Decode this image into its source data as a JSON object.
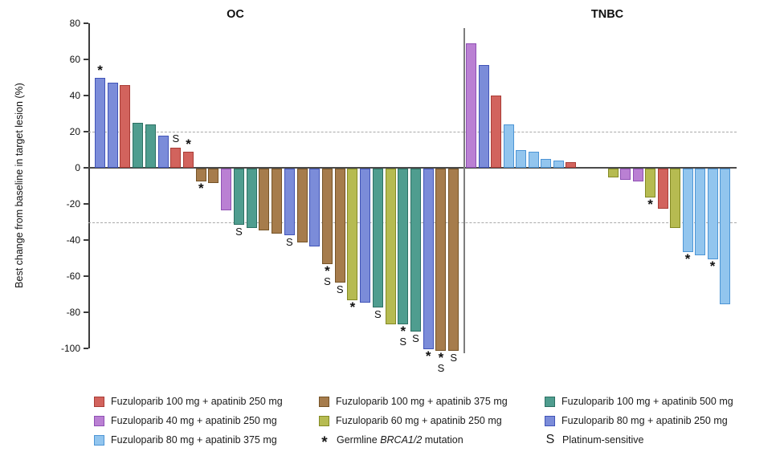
{
  "chart_data": {
    "type": "bar",
    "subtype": "waterfall",
    "ylabel": "Best change from baseline in target lesion (%)",
    "ylim": [
      -100,
      80
    ],
    "yticks": [
      80,
      60,
      40,
      20,
      0,
      -20,
      -40,
      -60,
      -80,
      -100
    ],
    "reference_lines": [
      20,
      -30
    ],
    "grid": "off",
    "legend_position": "bottom",
    "annotation_meanings": {
      "*": "Germline BRCA1/2 mutation",
      "S": "Platinum-sensitive"
    },
    "colors": {
      "red": {
        "fill": "#D2635D",
        "stroke": "#A93C36"
      },
      "purple": {
        "fill": "#BA80D3",
        "stroke": "#8F50B4"
      },
      "lightblue": {
        "fill": "#92C5EE",
        "stroke": "#4D95D5"
      },
      "brown": {
        "fill": "#A67C4C",
        "stroke": "#755327"
      },
      "olive": {
        "fill": "#B6BB51",
        "stroke": "#848A25"
      },
      "teal": {
        "fill": "#4F9D8F",
        "stroke": "#2C7063"
      },
      "blue": {
        "fill": "#7B8CD9",
        "stroke": "#4154B8"
      }
    },
    "groups": [
      {
        "title": "OC",
        "bars": [
          {
            "c": "blue",
            "v": 50,
            "ann": "*"
          },
          {
            "c": "blue",
            "v": 47
          },
          {
            "c": "red",
            "v": 46
          },
          {
            "c": "teal",
            "v": 25
          },
          {
            "c": "teal",
            "v": 24
          },
          {
            "c": "blue",
            "v": 18
          },
          {
            "c": "red",
            "v": 11,
            "ann": "S"
          },
          {
            "c": "red",
            "v": 9,
            "ann": "*"
          },
          {
            "c": "brown",
            "v": -7,
            "ann": "*"
          },
          {
            "c": "brown",
            "v": -8
          },
          {
            "c": "purple",
            "v": -23
          },
          {
            "c": "teal",
            "v": -31,
            "ann": "S"
          },
          {
            "c": "teal",
            "v": -33
          },
          {
            "c": "brown",
            "v": -34
          },
          {
            "c": "brown",
            "v": -36
          },
          {
            "c": "blue",
            "v": -37,
            "ann": "S"
          },
          {
            "c": "brown",
            "v": -41
          },
          {
            "c": "blue",
            "v": -43
          },
          {
            "c": "brown",
            "v": -53,
            "ann": "*S"
          },
          {
            "c": "brown",
            "v": -63,
            "ann": "S"
          },
          {
            "c": "olive",
            "v": -73,
            "ann": "*"
          },
          {
            "c": "blue",
            "v": -74
          },
          {
            "c": "teal",
            "v": -77,
            "ann": "S"
          },
          {
            "c": "olive",
            "v": -86
          },
          {
            "c": "teal",
            "v": -86,
            "ann": "*S"
          },
          {
            "c": "teal",
            "v": -90,
            "ann": "S"
          },
          {
            "c": "blue",
            "v": -100,
            "ann": "*"
          },
          {
            "c": "brown",
            "v": -101,
            "ann": "*S"
          },
          {
            "c": "brown",
            "v": -101,
            "ann": "S"
          }
        ]
      },
      {
        "title": "TNBC",
        "bars": [
          {
            "c": "purple",
            "v": 69
          },
          {
            "c": "blue",
            "v": 57
          },
          {
            "c": "red",
            "v": 40
          },
          {
            "c": "lightblue",
            "v": 24
          },
          {
            "c": "lightblue",
            "v": 10
          },
          {
            "c": "lightblue",
            "v": 9
          },
          {
            "c": "lightblue",
            "v": 5
          },
          {
            "c": "lightblue",
            "v": 4
          },
          {
            "c": "red",
            "v": 3
          },
          {
            "c": "olive",
            "v": -5,
            "gapBefore": true
          },
          {
            "c": "purple",
            "v": -6
          },
          {
            "c": "purple",
            "v": -7
          },
          {
            "c": "olive",
            "v": -16,
            "ann": "*"
          },
          {
            "c": "red",
            "v": -22
          },
          {
            "c": "olive",
            "v": -33
          },
          {
            "c": "lightblue",
            "v": -46,
            "ann": "*"
          },
          {
            "c": "lightblue",
            "v": -48
          },
          {
            "c": "lightblue",
            "v": -50,
            "ann": "*"
          },
          {
            "c": "lightblue",
            "v": -75
          }
        ]
      }
    ],
    "legend": [
      {
        "swatch": "red",
        "label": "Fuzuloparib 100 mg + apatinib 250 mg"
      },
      {
        "swatch": "purple",
        "label": "Fuzuloparib 40 mg + apatinib 250 mg"
      },
      {
        "swatch": "lightblue",
        "label": "Fuzuloparib 80 mg + apatinib 375 mg"
      },
      {
        "swatch": "brown",
        "label": "Fuzuloparib 100 mg + apatinib 375 mg"
      },
      {
        "swatch": "olive",
        "label": "Fuzuloparib 60 mg + apatinib 250 mg"
      },
      {
        "symbol": "*",
        "prefix": "Germline ",
        "italic": "BRCA1/2",
        "suffix": " mutation"
      },
      {
        "swatch": "teal",
        "label": "Fuzuloparib 100 mg + apatinib 500 mg"
      },
      {
        "swatch": "blue",
        "label": "Fuzuloparib 80 mg + apatinib 250 mg"
      },
      {
        "symbol": "S",
        "label": "Platinum-sensitive"
      }
    ]
  }
}
